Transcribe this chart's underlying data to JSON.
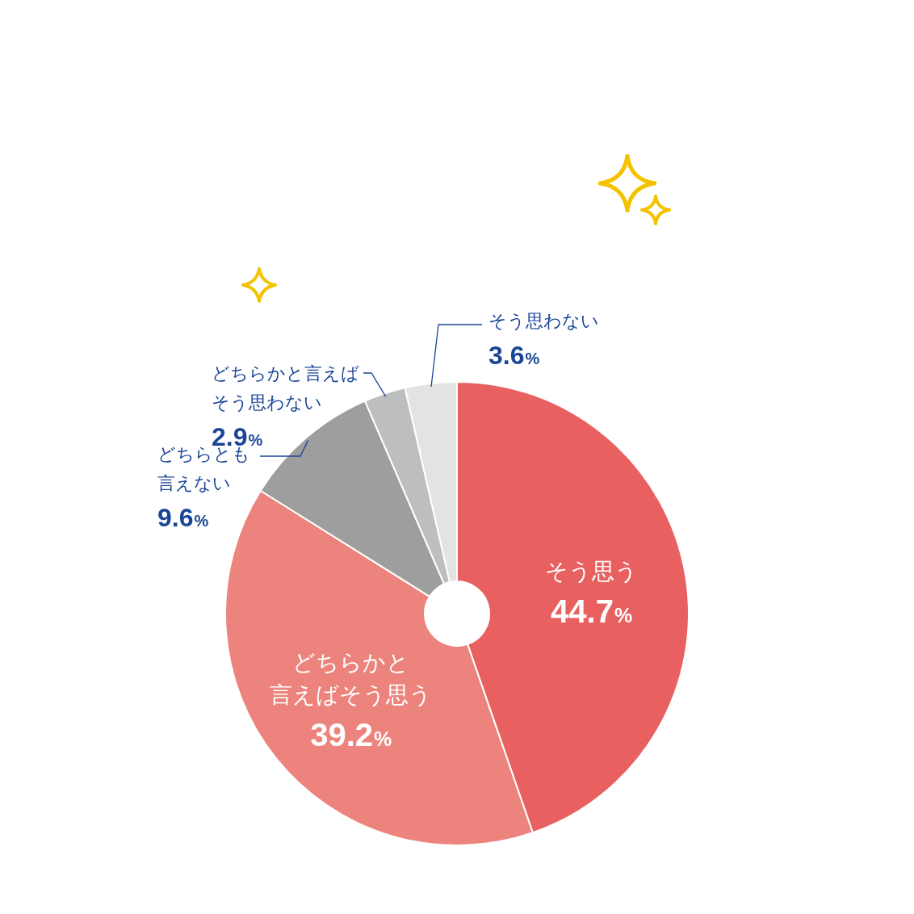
{
  "chart_data": {
    "type": "donut",
    "categories": [
      "そう思う",
      "どちらかと言えばそう思う",
      "どちらとも言えない",
      "どちらかと言えばそう思わない",
      "そう思わない"
    ],
    "values": [
      44.7,
      39.2,
      9.6,
      2.9,
      3.6
    ],
    "colors": [
      "#e86060",
      "#ec837c",
      "#9e9e9e",
      "#bdbebe",
      "#e3e3e3"
    ],
    "value_labels": [
      "44.7%",
      "39.2%",
      "9.6%",
      "2.9%",
      "3.6%"
    ]
  }
}
